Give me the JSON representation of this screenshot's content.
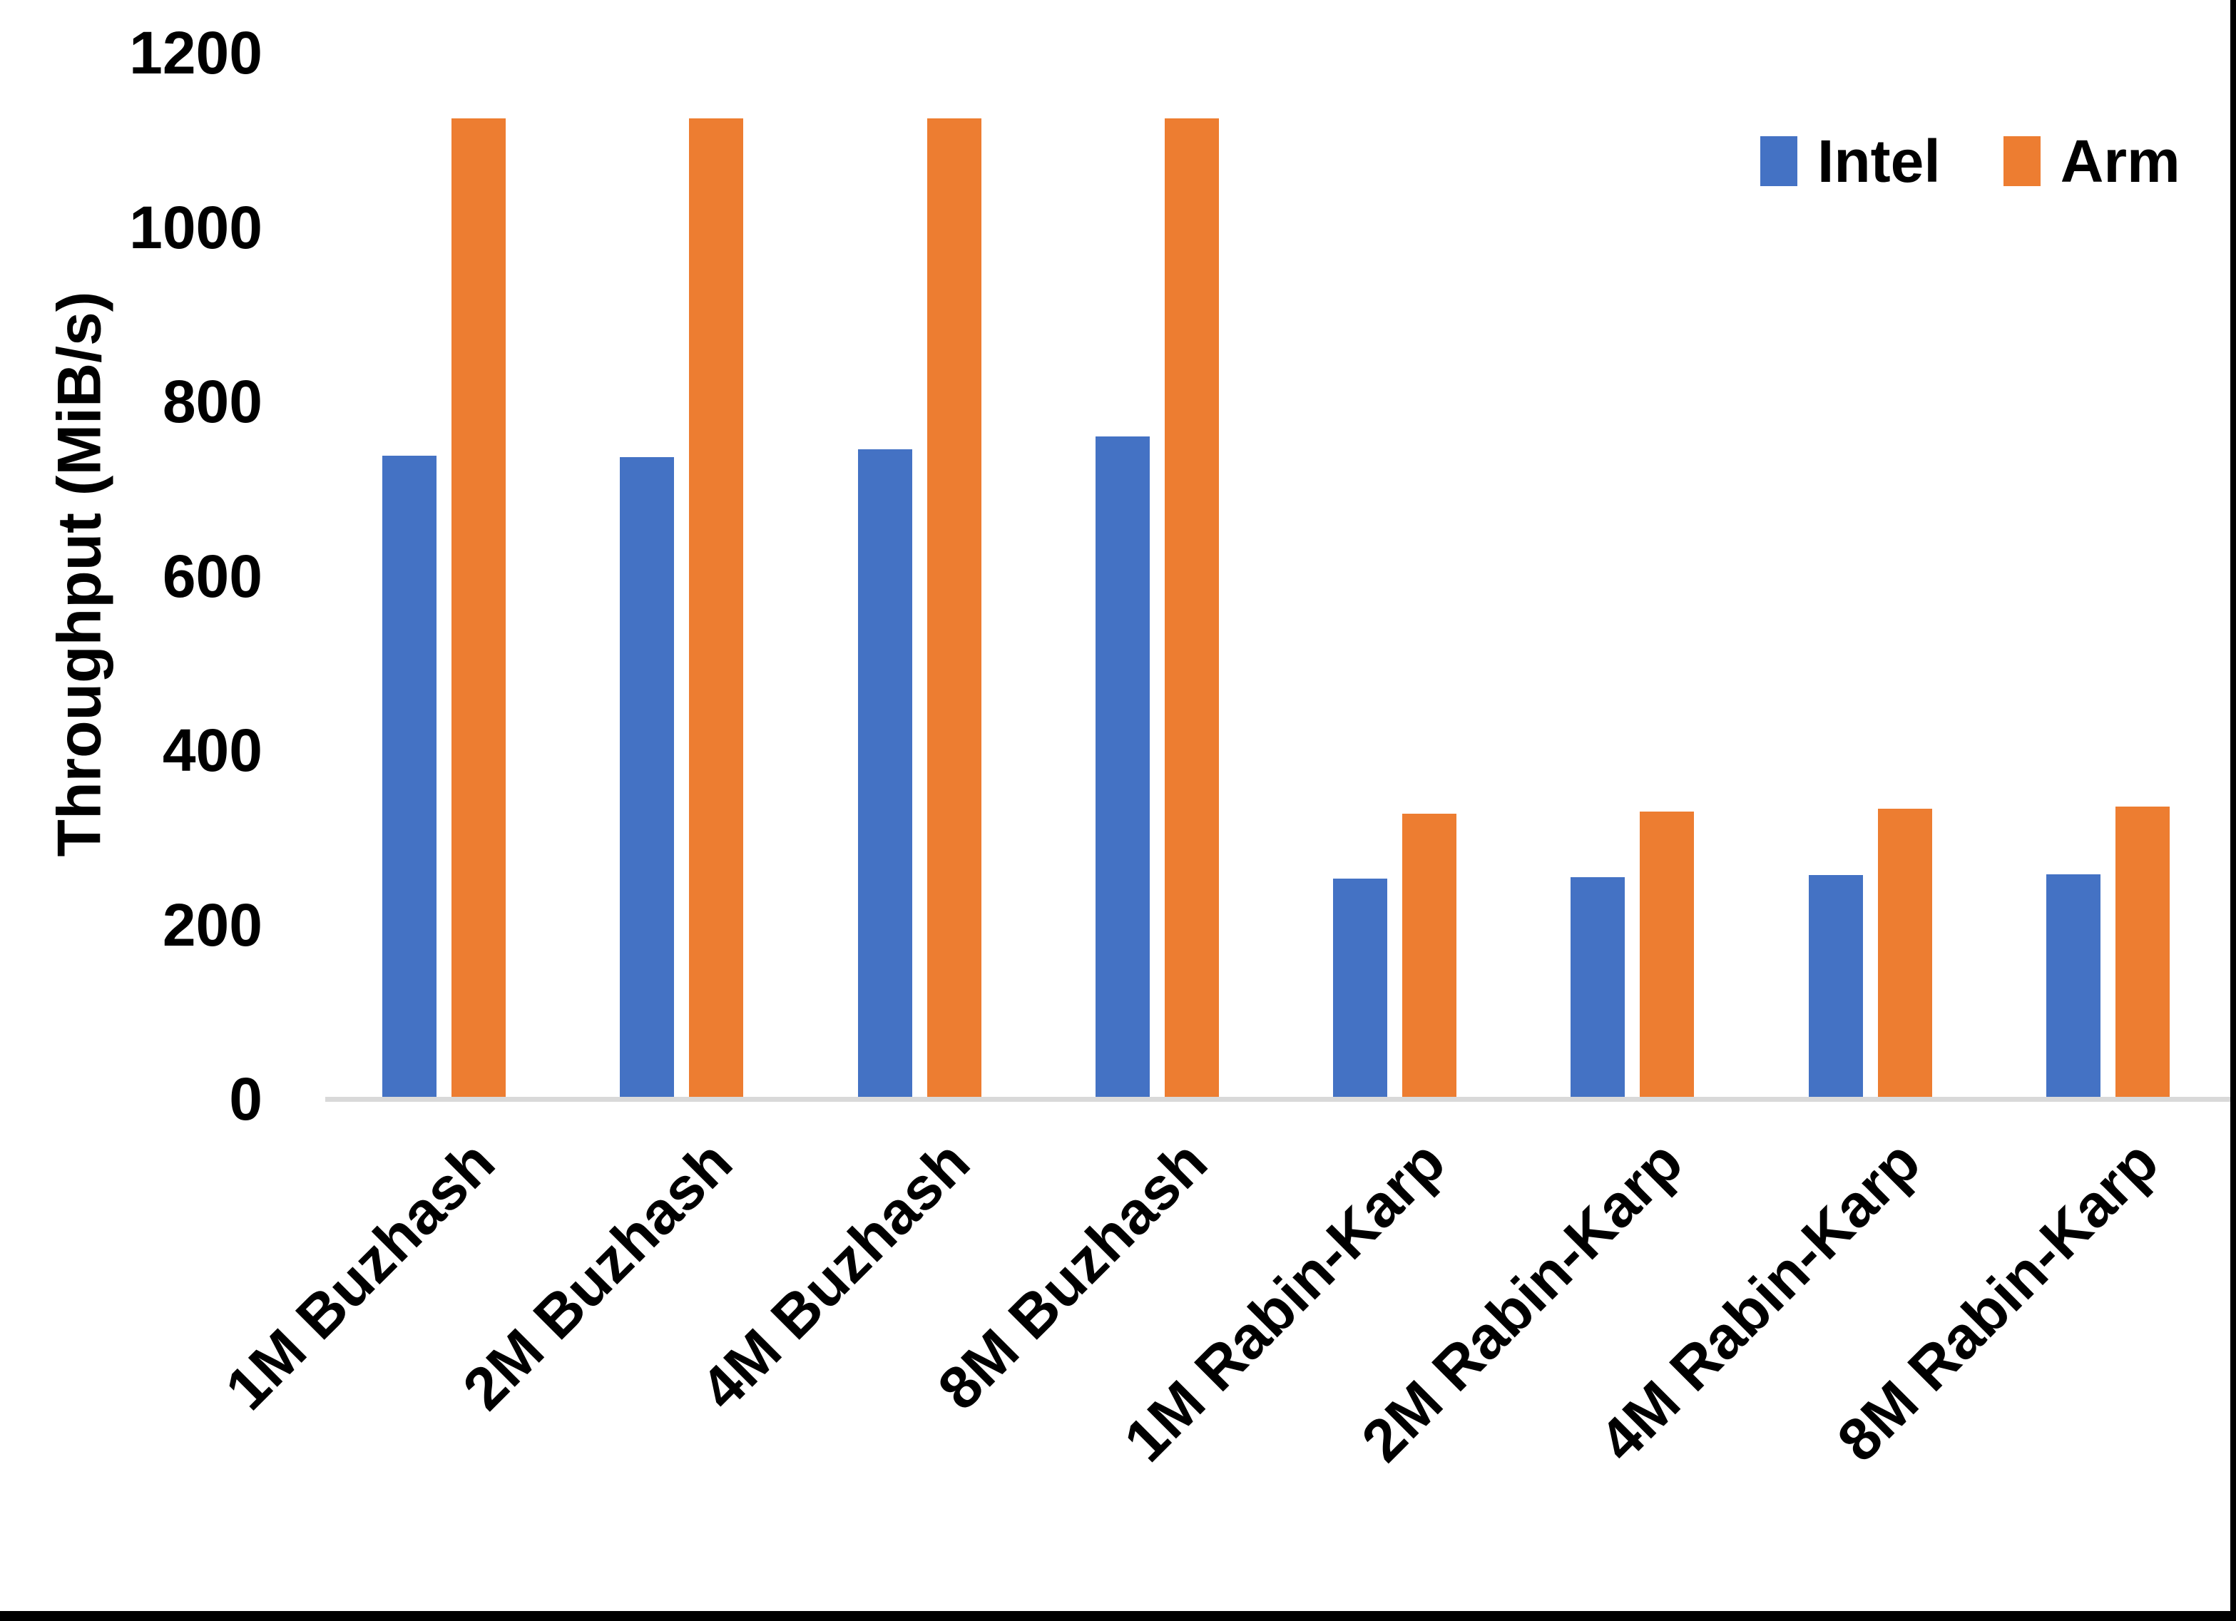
{
  "chart_data": {
    "type": "bar",
    "title": "",
    "ylabel": "Throughput (MiB/s)",
    "xlabel": "",
    "ylim": [
      0,
      1200
    ],
    "yticks": [
      0,
      200,
      400,
      600,
      800,
      1000,
      1200
    ],
    "grid": false,
    "legend_position": "top-right",
    "categories": [
      "1M Buzhash",
      "2M Buzhash",
      "4M Buzhash",
      "8M Buzhash",
      "1M Rabin-Karp",
      "2M Rabin-Karp",
      "4M Rabin-Karp",
      "8M Rabin-Karp"
    ],
    "series": [
      {
        "name": "Intel",
        "color": "#4472C4",
        "values": [
          738,
          736,
          745,
          760,
          253,
          254,
          257,
          258
        ]
      },
      {
        "name": "Arm",
        "color": "#ED7D31",
        "values": [
          1125,
          1125,
          1125,
          1125,
          327,
          330,
          333,
          335
        ]
      }
    ],
    "axis_line_color": "#d9d9d9",
    "text_color": "#000000"
  }
}
